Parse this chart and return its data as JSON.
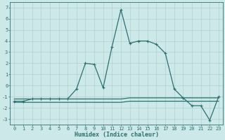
{
  "title": "",
  "xlabel": "Humidex (Indice chaleur)",
  "x": [
    0,
    1,
    2,
    3,
    4,
    5,
    6,
    7,
    8,
    9,
    10,
    11,
    12,
    13,
    14,
    15,
    16,
    17,
    18,
    19,
    20,
    21,
    22,
    23
  ],
  "y_main": [
    -1.4,
    -1.4,
    -1.2,
    -1.2,
    -1.2,
    -1.2,
    -1.2,
    -0.3,
    2.0,
    1.9,
    -0.2,
    3.5,
    6.8,
    3.8,
    4.0,
    4.0,
    3.7,
    2.9,
    -0.3,
    -1.1,
    -1.8,
    -1.8,
    -3.1,
    -1.0
  ],
  "y_flat1": [
    -1.2,
    -1.2,
    -1.2,
    -1.2,
    -1.2,
    -1.2,
    -1.2,
    -1.2,
    -1.2,
    -1.2,
    -1.2,
    -1.2,
    -1.2,
    -1.1,
    -1.1,
    -1.1,
    -1.1,
    -1.1,
    -1.1,
    -1.1,
    -1.1,
    -1.1,
    -1.1,
    -1.1
  ],
  "y_flat2": [
    -1.5,
    -1.5,
    -1.5,
    -1.5,
    -1.5,
    -1.5,
    -1.5,
    -1.5,
    -1.5,
    -1.5,
    -1.5,
    -1.5,
    -1.5,
    -1.4,
    -1.4,
    -1.4,
    -1.4,
    -1.4,
    -1.4,
    -1.4,
    -1.4,
    -1.4,
    -1.4,
    -1.4
  ],
  "line_color": "#2d7070",
  "bg_color": "#cce8e8",
  "grid_color": "#b0d0d0",
  "ylim": [
    -3.5,
    7.5
  ],
  "xlim": [
    -0.5,
    23.5
  ],
  "yticks": [
    -3,
    -2,
    -1,
    0,
    1,
    2,
    3,
    4,
    5,
    6,
    7
  ],
  "xticks": [
    0,
    1,
    2,
    3,
    4,
    5,
    6,
    7,
    8,
    9,
    10,
    11,
    12,
    13,
    14,
    15,
    16,
    17,
    18,
    19,
    20,
    21,
    22,
    23
  ],
  "marker": "+",
  "marker_size": 3,
  "linewidth": 0.9,
  "tick_fontsize": 5.0,
  "xlabel_fontsize": 6.0
}
